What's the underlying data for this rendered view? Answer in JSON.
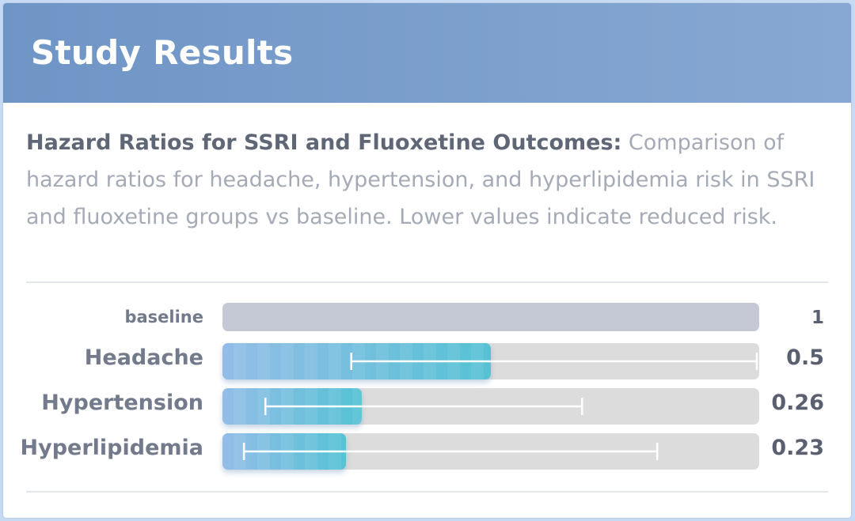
{
  "header": {
    "title": "Study Results"
  },
  "description": {
    "title": "Hazard Ratios for SSRI and Fluoxetine Outcomes:",
    "text": "Comparison of hazard ratios for headache, hypertension, and hyperlipidemia risk in SSRI and fluoxetine groups vs baseline. Lower values indicate reduced risk."
  },
  "colors": {
    "header": "#7a9dcb",
    "bar_start": "#93bde8",
    "bar_end": "#55c2d4",
    "track": "#dcdcdc",
    "baseline": "#c5c9d5"
  },
  "chart_data": {
    "type": "bar",
    "orientation": "horizontal",
    "xlim": [
      0,
      1
    ],
    "baseline": {
      "label": "baseline",
      "value_label": "1",
      "value": 1
    },
    "rows": [
      {
        "label": "Headache",
        "value_label": "0.5",
        "value": 0.5,
        "ci": [
          0.24,
          1.0
        ]
      },
      {
        "label": "Hypertension",
        "value_label": "0.26",
        "value": 0.26,
        "ci": [
          0.08,
          0.67
        ]
      },
      {
        "label": "Hyperlipidemia",
        "value_label": "0.23",
        "value": 0.23,
        "ci": [
          0.04,
          0.81
        ]
      }
    ]
  }
}
